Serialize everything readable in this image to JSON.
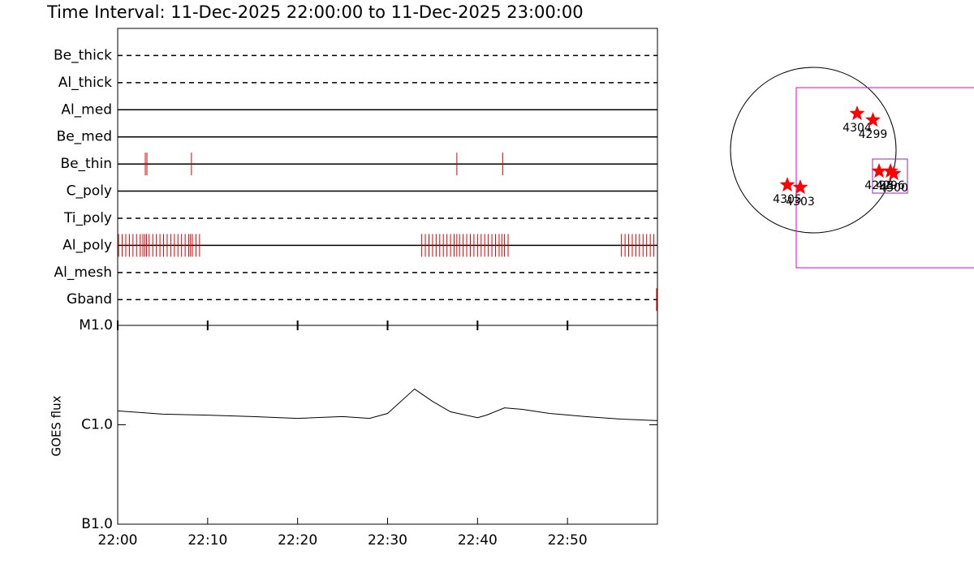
{
  "chart_data": [
    {
      "type": "event",
      "title": "Time Interval: 11-Dec-2025 22:00:00 to 11-Dec-2025 23:00:00",
      "color": "#e00000",
      "xlim": [
        0,
        60
      ],
      "rows": [
        {
          "name": "Be_thick",
          "style": "dashed",
          "times": []
        },
        {
          "name": "Al_thick",
          "style": "dashed",
          "times": []
        },
        {
          "name": "Al_med",
          "style": "solid",
          "times": []
        },
        {
          "name": "Be_med",
          "style": "solid",
          "times": []
        },
        {
          "name": "Be_thin",
          "style": "solid",
          "times": [
            3.07,
            3.25,
            8.2,
            37.7,
            42.8
          ]
        },
        {
          "name": "C_poly",
          "style": "solid",
          "times": []
        },
        {
          "name": "Ti_poly",
          "style": "dashed",
          "times": []
        },
        {
          "name": "Al_poly",
          "style": "solid",
          "times": [
            0.1,
            0.5,
            0.9,
            1.3,
            1.7,
            2.1,
            2.5,
            2.8,
            3.0,
            3.2,
            3.5,
            3.9,
            4.3,
            4.7,
            5.1,
            5.5,
            5.9,
            6.3,
            6.7,
            7.1,
            7.5,
            7.9,
            8.1,
            8.3,
            8.7,
            9.1,
            33.8,
            34.2,
            34.6,
            35.0,
            35.4,
            35.8,
            36.2,
            36.6,
            37.0,
            37.4,
            37.7,
            38.0,
            38.4,
            38.8,
            39.2,
            39.6,
            40.0,
            40.4,
            40.8,
            41.2,
            41.6,
            42.0,
            42.4,
            42.7,
            43.0,
            43.4,
            56.0,
            56.4,
            56.8,
            57.2,
            57.6,
            58.0,
            58.4,
            58.8,
            59.2,
            59.6
          ]
        },
        {
          "name": "Al_mesh",
          "style": "dashed",
          "times": []
        },
        {
          "name": "Gband",
          "style": "dashed",
          "times": [
            59.9
          ]
        }
      ]
    },
    {
      "type": "line",
      "y_label": "GOES flux",
      "log_y": true,
      "color": "#000000",
      "x": [
        0,
        5,
        10,
        15,
        20,
        25,
        28,
        30,
        33,
        35,
        37,
        40,
        41,
        43,
        45,
        48,
        52,
        56,
        60
      ],
      "values": [
        1.38e-06,
        1.28e-06,
        1.25e-06,
        1.21e-06,
        1.16e-06,
        1.21e-06,
        1.16e-06,
        1.3e-06,
        2.29e-06,
        1.72e-06,
        1.35e-06,
        1.18e-06,
        1.25e-06,
        1.48e-06,
        1.43e-06,
        1.3e-06,
        1.21e-06,
        1.14e-06,
        1.1e-06
      ],
      "xlim": [
        0,
        60
      ],
      "xticks": [
        {
          "value": 0,
          "label": "22:00"
        },
        {
          "value": 10,
          "label": "22:10"
        },
        {
          "value": 20,
          "label": "22:20"
        },
        {
          "value": 30,
          "label": "22:30"
        },
        {
          "value": 40,
          "label": "22:40"
        },
        {
          "value": 50,
          "label": "22:50"
        }
      ],
      "ylim": [
        1e-07,
        1e-05
      ],
      "yticks": [
        {
          "value": 1e-05,
          "label": "M1.0"
        },
        {
          "value": 1e-06,
          "label": "C1.0"
        },
        {
          "value": 1e-07,
          "label": "B1.0"
        }
      ]
    },
    {
      "type": "scatter",
      "color": "#ff0000",
      "labels": [
        "4304",
        "4299",
        "4305",
        "4303",
        "4298",
        "4296",
        "4300"
      ],
      "x": [
        513,
        698,
        -304,
        -152,
        770,
        903,
        941
      ],
      "y": [
        428,
        352,
        -409,
        -437,
        -247,
        -247,
        -276
      ],
      "xlim": [
        -1159,
        1881
      ],
      "ylim": [
        -1378,
        1378
      ]
    }
  ]
}
